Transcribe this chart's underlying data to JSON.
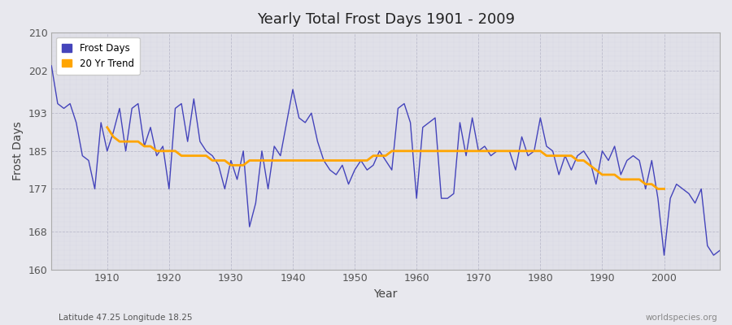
{
  "title": "Yearly Total Frost Days 1901 - 2009",
  "xlabel": "Year",
  "ylabel": "Frost Days",
  "legend_labels": [
    "Frost Days",
    "20 Yr Trend"
  ],
  "line_color": "#4444bb",
  "trend_color": "#FFA500",
  "bg_color": "#e8e8ee",
  "plot_bg": "#e0e0e8",
  "grid_color": "#ccccdd",
  "ylim": [
    160,
    210
  ],
  "yticks": [
    160,
    168,
    177,
    185,
    193,
    202,
    210
  ],
  "xlim": [
    1901,
    2009
  ],
  "subtitle_left": "Latitude 47.25 Longitude 18.25",
  "subtitle_right": "worldspecies.org",
  "years": [
    1901,
    1902,
    1903,
    1904,
    1905,
    1906,
    1907,
    1908,
    1909,
    1910,
    1911,
    1912,
    1913,
    1914,
    1915,
    1916,
    1917,
    1918,
    1919,
    1920,
    1921,
    1922,
    1923,
    1924,
    1925,
    1926,
    1927,
    1928,
    1929,
    1930,
    1931,
    1932,
    1933,
    1934,
    1935,
    1936,
    1937,
    1938,
    1939,
    1940,
    1941,
    1942,
    1943,
    1944,
    1945,
    1946,
    1947,
    1948,
    1949,
    1950,
    1951,
    1952,
    1953,
    1954,
    1955,
    1956,
    1957,
    1958,
    1959,
    1960,
    1961,
    1962,
    1963,
    1964,
    1965,
    1966,
    1967,
    1968,
    1969,
    1970,
    1971,
    1972,
    1973,
    1974,
    1975,
    1976,
    1977,
    1978,
    1979,
    1980,
    1981,
    1982,
    1983,
    1984,
    1985,
    1986,
    1987,
    1988,
    1989,
    1990,
    1991,
    1992,
    1993,
    1994,
    1995,
    1996,
    1997,
    1998,
    1999,
    2000,
    2001,
    2002,
    2003,
    2004,
    2005,
    2006,
    2007,
    2008,
    2009
  ],
  "frost_days": [
    203,
    195,
    194,
    195,
    191,
    184,
    183,
    177,
    191,
    185,
    189,
    194,
    185,
    194,
    195,
    186,
    190,
    184,
    186,
    177,
    194,
    195,
    187,
    196,
    187,
    185,
    184,
    182,
    177,
    183,
    179,
    185,
    169,
    174,
    185,
    177,
    186,
    184,
    191,
    198,
    192,
    191,
    193,
    187,
    183,
    181,
    180,
    182,
    178,
    181,
    183,
    181,
    182,
    185,
    183,
    181,
    194,
    195,
    191,
    175,
    190,
    191,
    192,
    175,
    175,
    176,
    191,
    184,
    192,
    185,
    186,
    184,
    185,
    185,
    185,
    181,
    188,
    184,
    185,
    192,
    186,
    185,
    180,
    184,
    181,
    184,
    185,
    183,
    178,
    185,
    183,
    186,
    180,
    183,
    184,
    183,
    177,
    183,
    175,
    163,
    175,
    178,
    177,
    176,
    174,
    177,
    165,
    163,
    164
  ],
  "trend_years": [
    1910,
    1911,
    1912,
    1913,
    1914,
    1915,
    1916,
    1917,
    1918,
    1919,
    1920,
    1921,
    1922,
    1923,
    1924,
    1925,
    1926,
    1927,
    1928,
    1929,
    1930,
    1931,
    1932,
    1933,
    1934,
    1935,
    1936,
    1937,
    1938,
    1939,
    1940,
    1941,
    1942,
    1943,
    1944,
    1945,
    1946,
    1947,
    1948,
    1949,
    1950,
    1951,
    1952,
    1953,
    1954,
    1955,
    1956,
    1957,
    1958,
    1959,
    1960,
    1961,
    1962,
    1963,
    1964,
    1965,
    1966,
    1967,
    1968,
    1969,
    1970,
    1971,
    1972,
    1973,
    1974,
    1975,
    1976,
    1977,
    1978,
    1979,
    1980,
    1981,
    1982,
    1983,
    1984,
    1985,
    1986,
    1987,
    1988,
    1989,
    1990,
    1991,
    1992,
    1993,
    1994,
    1995,
    1996,
    1997,
    1998,
    1999,
    2000
  ],
  "trend_values": [
    190,
    188,
    187,
    187,
    187,
    187,
    186,
    186,
    185,
    185,
    185,
    185,
    184,
    184,
    184,
    184,
    184,
    183,
    183,
    183,
    182,
    182,
    182,
    183,
    183,
    183,
    183,
    183,
    183,
    183,
    183,
    183,
    183,
    183,
    183,
    183,
    183,
    183,
    183,
    183,
    183,
    183,
    183,
    184,
    184,
    184,
    185,
    185,
    185,
    185,
    185,
    185,
    185,
    185,
    185,
    185,
    185,
    185,
    185,
    185,
    185,
    185,
    185,
    185,
    185,
    185,
    185,
    185,
    185,
    185,
    185,
    184,
    184,
    184,
    184,
    184,
    183,
    183,
    182,
    181,
    180,
    180,
    180,
    179,
    179,
    179,
    179,
    178,
    178,
    177,
    177
  ]
}
